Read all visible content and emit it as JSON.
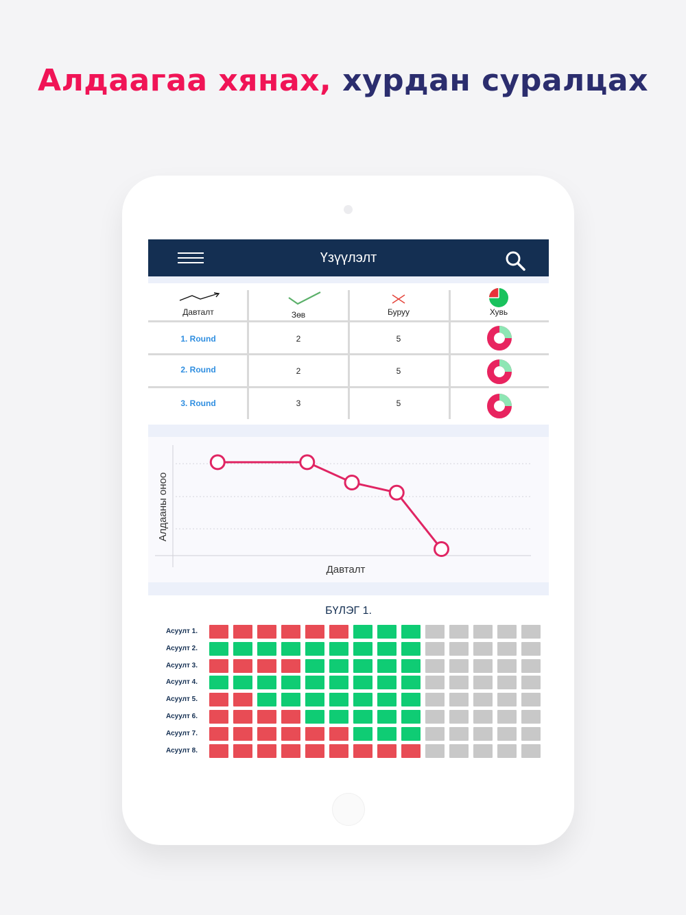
{
  "headline": {
    "part1": "Алдаагаа хянах,",
    "part2": "хурдан суралцах",
    "color1": "#f01456",
    "color2": "#2b2d6e"
  },
  "appbar": {
    "title": "Үзүүлэлт",
    "menu_icon": "hamburger-menu-icon",
    "search_icon": "search-icon",
    "bg": "#142f52"
  },
  "stats": {
    "headers": [
      {
        "label": "Давталт",
        "icon": "trend-arrow-icon"
      },
      {
        "label": "Зөв",
        "icon": "checkmark-icon"
      },
      {
        "label": "Буруу",
        "icon": "cross-icon"
      },
      {
        "label": "Хувь",
        "icon": "pie-icon"
      }
    ],
    "rows": [
      {
        "round": "1. Round",
        "correct": "2",
        "wrong": "5"
      },
      {
        "round": "2. Round",
        "correct": "2",
        "wrong": "5"
      },
      {
        "round": "3. Round",
        "correct": "3",
        "wrong": "5"
      }
    ],
    "colors": {
      "round_text": "#2f8ee0",
      "donut_main": "#e8245f",
      "donut_accent": "#8ee6b4"
    }
  },
  "chart_data": {
    "type": "line",
    "ylabel": "Алдааны оноо",
    "xlabel": "Давталт",
    "title": "",
    "grid": true,
    "series": [
      {
        "values": [
          4.0,
          4.0,
          3.3,
          2.95,
          1.0
        ]
      }
    ],
    "x": [
      1,
      3,
      4,
      5,
      6
    ],
    "xlim": [
      0,
      8
    ],
    "ylim": [
      0.8,
      4.4
    ],
    "color": "#e02563"
  },
  "sections": {
    "title": "БҮЛЭГ 1.",
    "colors": {
      "red": "#e84c55",
      "green": "#0fcc74",
      "gray": "#c8c8c8"
    },
    "questions": [
      {
        "label": "Асуулт 1.",
        "cells": [
          "r",
          "r",
          "r",
          "r",
          "r",
          "r",
          "g",
          "g",
          "g",
          "n",
          "n",
          "n",
          "n",
          "n"
        ]
      },
      {
        "label": "Асуулт 2.",
        "cells": [
          "g",
          "g",
          "g",
          "g",
          "g",
          "g",
          "g",
          "g",
          "g",
          "n",
          "n",
          "n",
          "n",
          "n"
        ]
      },
      {
        "label": "Асуулт 3.",
        "cells": [
          "r",
          "r",
          "r",
          "r",
          "g",
          "g",
          "g",
          "g",
          "g",
          "n",
          "n",
          "n",
          "n",
          "n"
        ]
      },
      {
        "label": "Асуулт 4.",
        "cells": [
          "g",
          "g",
          "g",
          "g",
          "g",
          "g",
          "g",
          "g",
          "g",
          "n",
          "n",
          "n",
          "n",
          "n"
        ]
      },
      {
        "label": "Асуулт 5.",
        "cells": [
          "r",
          "r",
          "g",
          "g",
          "g",
          "g",
          "g",
          "g",
          "g",
          "n",
          "n",
          "n",
          "n",
          "n"
        ]
      },
      {
        "label": "Асуулт 6.",
        "cells": [
          "r",
          "r",
          "r",
          "r",
          "g",
          "g",
          "g",
          "g",
          "g",
          "n",
          "n",
          "n",
          "n",
          "n"
        ]
      },
      {
        "label": "Асуулт 7.",
        "cells": [
          "r",
          "r",
          "r",
          "r",
          "r",
          "r",
          "g",
          "g",
          "g",
          "n",
          "n",
          "n",
          "n",
          "n"
        ]
      },
      {
        "label": "Асуулт 8.",
        "cells": [
          "r",
          "r",
          "r",
          "r",
          "r",
          "r",
          "r",
          "r",
          "r",
          "n",
          "n",
          "n",
          "n",
          "n"
        ]
      }
    ]
  }
}
